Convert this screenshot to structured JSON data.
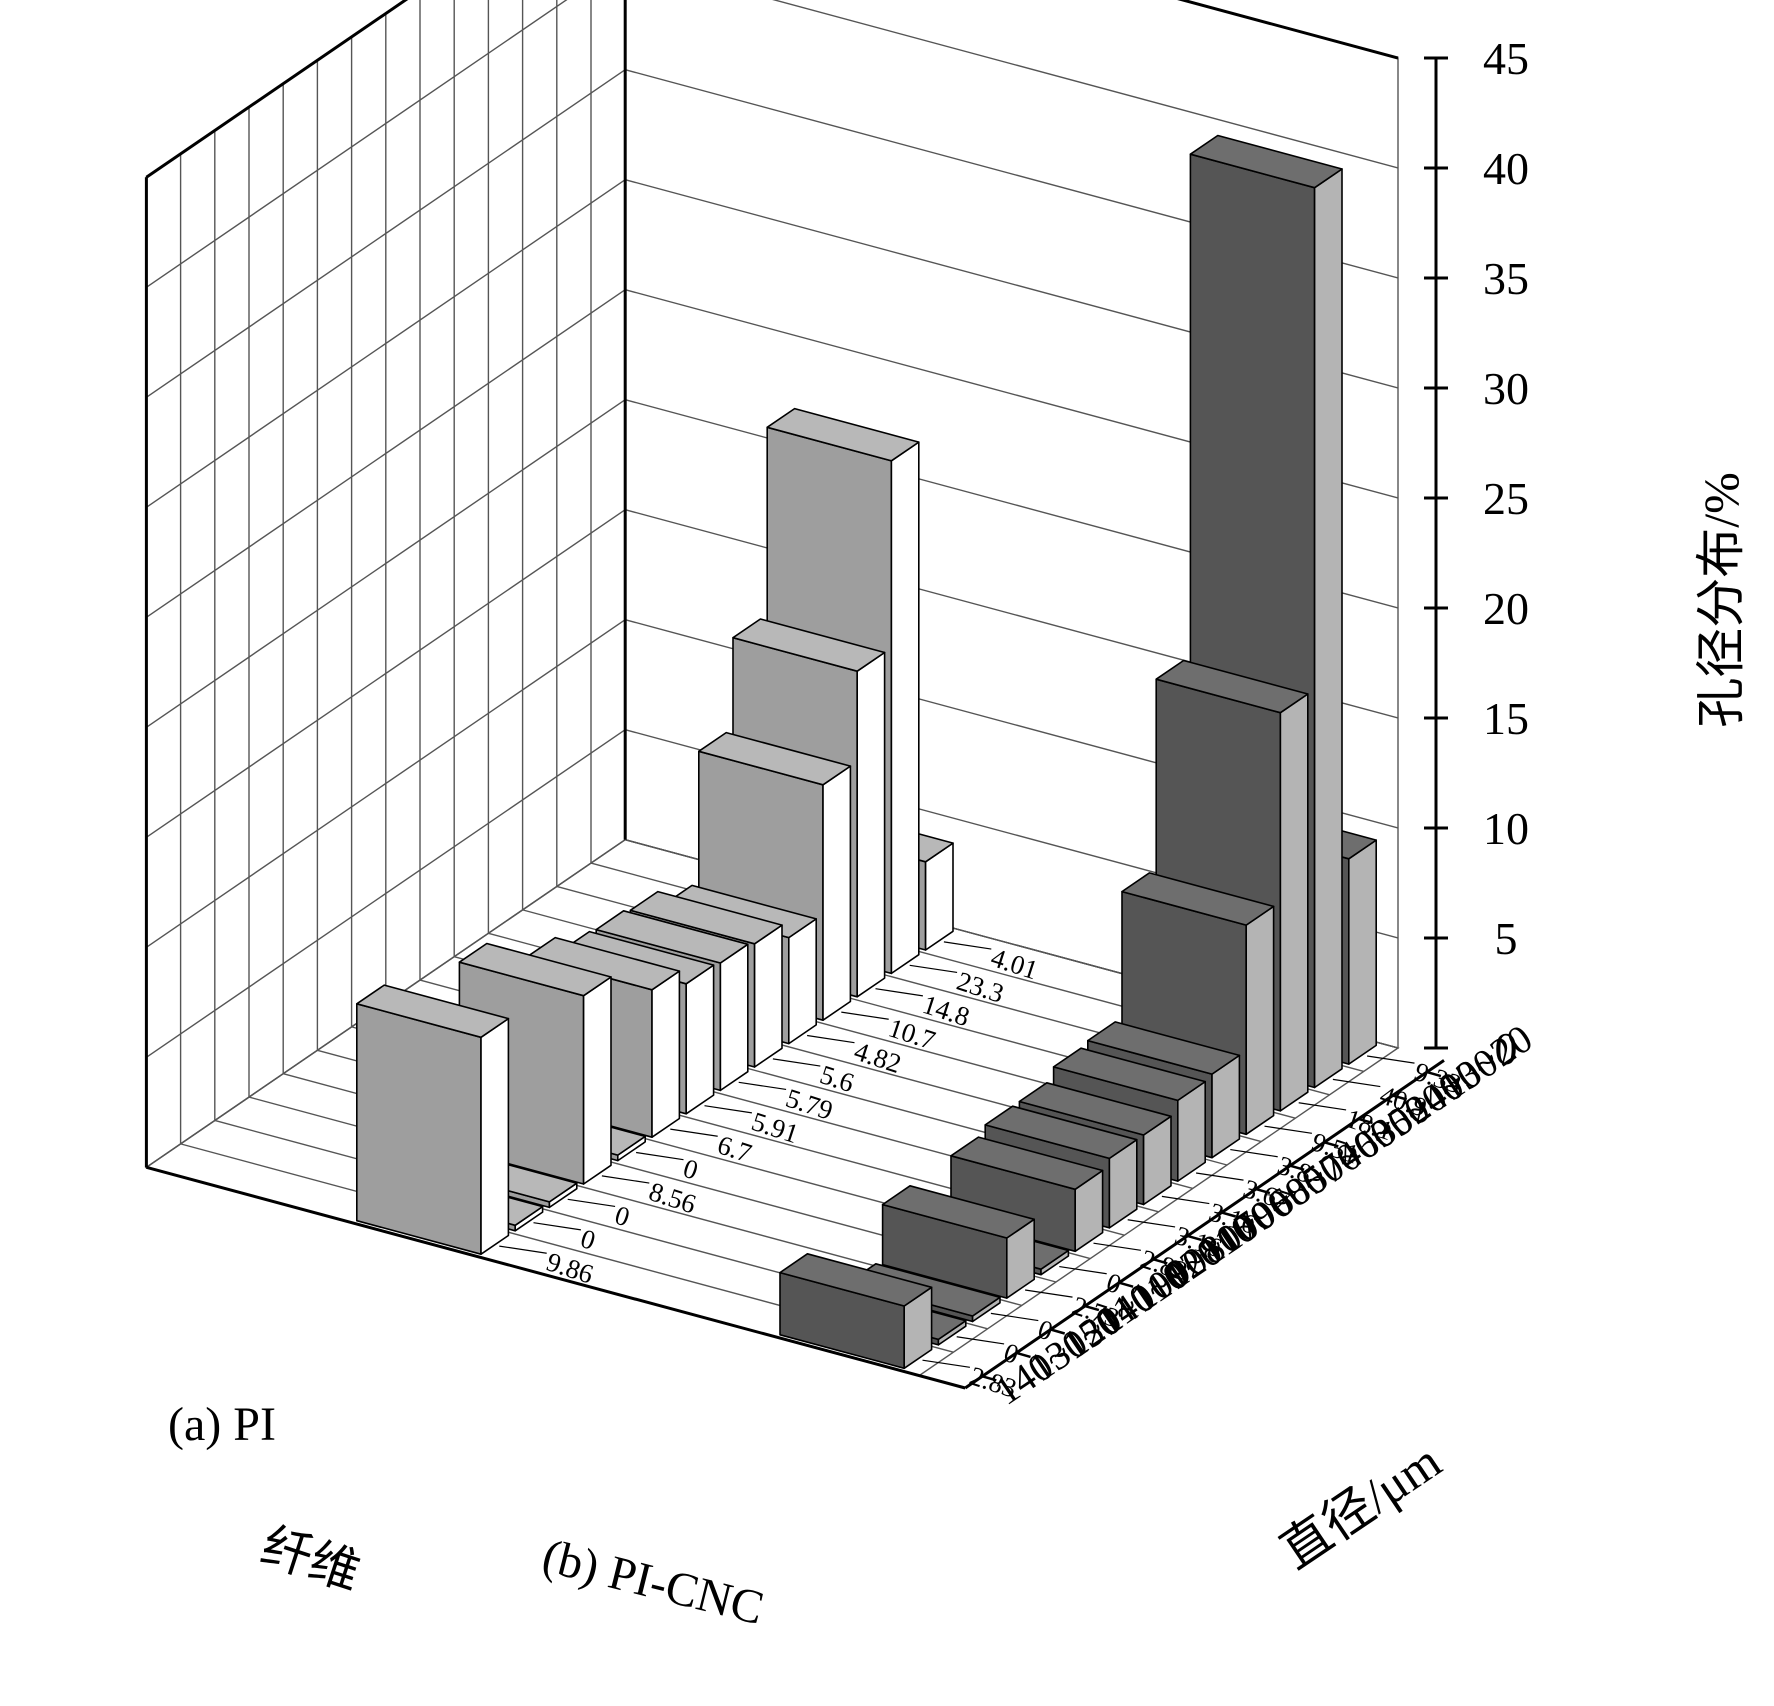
{
  "chart_data": {
    "type": "bar",
    "projection": "3d",
    "categories": [
      "10~20",
      "20~30",
      "30~40",
      "40~50",
      "50~60",
      "60~70",
      "70~80",
      "80~90",
      "90~100",
      "100~110",
      "110~120",
      "120~110",
      "130~140",
      "140~150"
    ],
    "series": [
      {
        "name": "(a) PI",
        "values": [
          4.01,
          23.3,
          14.8,
          10.7,
          4.82,
          5.6,
          5.79,
          5.91,
          6.7,
          0,
          8.56,
          0,
          0,
          9.86
        ],
        "labels": [
          "4.01",
          "23.3",
          "14.8",
          "10.7",
          "4.82",
          "5.6",
          "5.79",
          "5.91",
          "6.7",
          "0",
          "8.56",
          "0",
          "0",
          "9.86"
        ]
      },
      {
        "name": "(b) PI-CNC",
        "values": [
          9.33,
          40.9,
          18.1,
          9.51,
          3.8,
          3.67,
          3.16,
          3.16,
          2.82,
          0,
          2.73,
          0,
          0,
          2.83
        ],
        "labels": [
          "9.33",
          "40.9",
          "18.1",
          "9.51",
          "3.8",
          "3.67",
          "3.16",
          "3.16",
          "2.82",
          "0",
          "2.73",
          "0",
          "0",
          "2.83"
        ]
      }
    ],
    "xlabel": "直径/μm",
    "ylabel": "纤维",
    "zlabel": "孔径分布/%",
    "zlim": [
      0,
      45
    ],
    "zticks": [
      "0",
      "5",
      "10",
      "15",
      "20",
      "25",
      "30",
      "35",
      "40",
      "45"
    ],
    "grid": true,
    "colors": {
      "series_a_front": "#9e9e9e",
      "series_a_top": "#b8b8b8",
      "series_a_side": "#ffffff",
      "series_b_front": "#555555",
      "series_b_top": "#6e6e6e",
      "series_b_side": "#b4b4b4"
    }
  }
}
